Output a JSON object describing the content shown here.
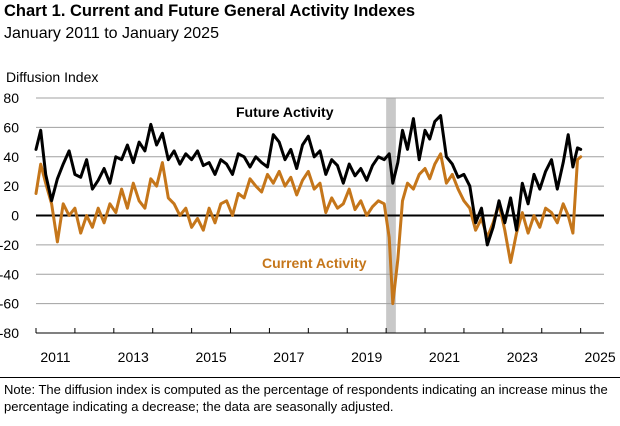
{
  "title": "Chart 1. Current and Future General Activity Indexes",
  "subtitle": "January 2011 to January 2025",
  "note": "Note: The diffusion index is computed as the percentage of respondents indicating an increase minus the percentage indicating a decrease; the data are seasonally adjusted.",
  "colors": {
    "future": "#000000",
    "current": "#C5761A",
    "recession": "#C8C8C8",
    "grid": "#A0A0A0"
  },
  "chart_data": {
    "type": "line",
    "ylabel": "Diffusion Index",
    "ylim": [
      -80,
      80
    ],
    "yticks": [
      -80,
      -60,
      -40,
      -20,
      0,
      20,
      40,
      60,
      80
    ],
    "ytick_labels": [
      "-80",
      "-60",
      "-40",
      "-20",
      "0",
      "20",
      "40",
      "60",
      "80"
    ],
    "xlim": [
      2011,
      2025.6
    ],
    "xticks": [
      2011,
      2013,
      2015,
      2017,
      2019,
      2021,
      2023,
      2025
    ],
    "xtick_labels": [
      "2011",
      "2013",
      "2015",
      "2017",
      "2019",
      "2021",
      "2023",
      "2025"
    ],
    "shaded_period": [
      2020.0,
      2020.25
    ],
    "grid": true,
    "series": [
      {
        "name": "Future Activity",
        "label": "Future Activity",
        "x": [
          2011.0,
          2011.12,
          2011.25,
          2011.4,
          2011.55,
          2011.7,
          2011.85,
          2012.0,
          2012.15,
          2012.3,
          2012.45,
          2012.6,
          2012.75,
          2012.9,
          2013.05,
          2013.2,
          2013.35,
          2013.5,
          2013.65,
          2013.8,
          2013.95,
          2014.1,
          2014.25,
          2014.4,
          2014.55,
          2014.7,
          2014.85,
          2015.0,
          2015.15,
          2015.3,
          2015.45,
          2015.6,
          2015.75,
          2015.9,
          2016.05,
          2016.2,
          2016.35,
          2016.5,
          2016.65,
          2016.8,
          2016.95,
          2017.1,
          2017.25,
          2017.4,
          2017.55,
          2017.7,
          2017.85,
          2018.0,
          2018.15,
          2018.3,
          2018.45,
          2018.6,
          2018.75,
          2018.9,
          2019.05,
          2019.2,
          2019.35,
          2019.5,
          2019.65,
          2019.8,
          2019.95,
          2020.08,
          2020.17,
          2020.3,
          2020.42,
          2020.55,
          2020.7,
          2020.85,
          2021.0,
          2021.12,
          2021.25,
          2021.4,
          2021.55,
          2021.7,
          2021.85,
          2022.0,
          2022.15,
          2022.3,
          2022.45,
          2022.6,
          2022.75,
          2022.9,
          2023.05,
          2023.2,
          2023.35,
          2023.5,
          2023.65,
          2023.8,
          2023.95,
          2024.1,
          2024.25,
          2024.4,
          2024.55,
          2024.68,
          2024.8,
          2024.92,
          2025.0
        ],
        "values": [
          45,
          58,
          28,
          10,
          25,
          35,
          44,
          28,
          26,
          38,
          18,
          24,
          32,
          22,
          40,
          38,
          48,
          36,
          50,
          44,
          62,
          48,
          56,
          38,
          44,
          35,
          42,
          38,
          44,
          34,
          36,
          28,
          38,
          35,
          28,
          42,
          40,
          33,
          40,
          36,
          33,
          55,
          50,
          38,
          45,
          32,
          48,
          54,
          40,
          44,
          28,
          38,
          34,
          22,
          35,
          27,
          32,
          24,
          34,
          40,
          38,
          42,
          22,
          36,
          58,
          45,
          66,
          38,
          58,
          52,
          64,
          68,
          40,
          35,
          26,
          28,
          20,
          -5,
          5,
          -20,
          -8,
          10,
          -5,
          12,
          -10,
          22,
          8,
          28,
          18,
          30,
          38,
          18,
          36,
          55,
          33,
          46,
          45
        ]
      },
      {
        "name": "Current Activity",
        "label": "Current Activity",
        "x": [
          2011.0,
          2011.12,
          2011.25,
          2011.4,
          2011.55,
          2011.7,
          2011.85,
          2012.0,
          2012.15,
          2012.3,
          2012.45,
          2012.6,
          2012.75,
          2012.9,
          2013.05,
          2013.2,
          2013.35,
          2013.5,
          2013.65,
          2013.8,
          2013.95,
          2014.1,
          2014.25,
          2014.4,
          2014.55,
          2014.7,
          2014.85,
          2015.0,
          2015.15,
          2015.3,
          2015.45,
          2015.6,
          2015.75,
          2015.9,
          2016.05,
          2016.2,
          2016.35,
          2016.5,
          2016.65,
          2016.8,
          2016.95,
          2017.1,
          2017.25,
          2017.4,
          2017.55,
          2017.7,
          2017.85,
          2018.0,
          2018.15,
          2018.3,
          2018.45,
          2018.6,
          2018.75,
          2018.9,
          2019.05,
          2019.2,
          2019.35,
          2019.5,
          2019.65,
          2019.8,
          2019.95,
          2020.08,
          2020.17,
          2020.3,
          2020.42,
          2020.55,
          2020.7,
          2020.85,
          2021.0,
          2021.12,
          2021.25,
          2021.4,
          2021.55,
          2021.7,
          2021.85,
          2022.0,
          2022.15,
          2022.3,
          2022.45,
          2022.6,
          2022.75,
          2022.9,
          2023.05,
          2023.2,
          2023.35,
          2023.5,
          2023.65,
          2023.8,
          2023.95,
          2024.1,
          2024.25,
          2024.4,
          2024.55,
          2024.68,
          2024.8,
          2024.92,
          2025.0
        ],
        "values": [
          15,
          35,
          22,
          8,
          -18,
          8,
          0,
          5,
          -12,
          0,
          -8,
          5,
          -5,
          8,
          2,
          18,
          5,
          22,
          10,
          5,
          25,
          20,
          36,
          12,
          8,
          0,
          5,
          -8,
          -2,
          -10,
          5,
          -5,
          8,
          10,
          0,
          15,
          12,
          25,
          20,
          16,
          28,
          22,
          30,
          20,
          26,
          14,
          24,
          30,
          18,
          22,
          2,
          12,
          5,
          8,
          18,
          4,
          10,
          0,
          6,
          10,
          8,
          -15,
          -60,
          -30,
          10,
          22,
          18,
          28,
          32,
          25,
          35,
          42,
          22,
          28,
          18,
          10,
          5,
          -10,
          -2,
          -15,
          -5,
          8,
          -10,
          -32,
          -12,
          2,
          -12,
          0,
          -8,
          5,
          2,
          -5,
          8,
          0,
          -12,
          38,
          40
        ]
      }
    ]
  }
}
